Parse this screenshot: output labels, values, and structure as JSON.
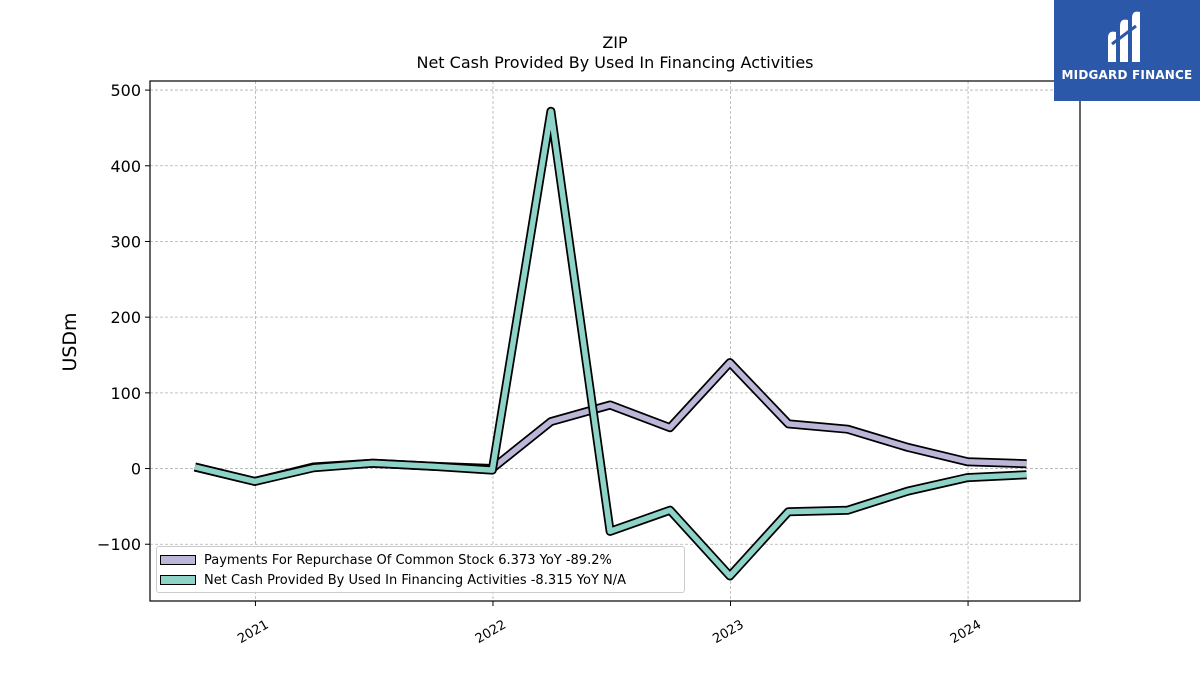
{
  "chart_data": {
    "type": "line",
    "title": "ZIP",
    "subtitle": "Net Cash Provided By Used In Financing Activities",
    "xlabel": "",
    "ylabel": "USDm",
    "ylim": [
      -175,
      512
    ],
    "xlim": [
      "2020-07-23",
      "2024-06-21"
    ],
    "yticks": [
      -100,
      0,
      100,
      200,
      300,
      400,
      500
    ],
    "ytick_labels": [
      "−100",
      "0",
      "100",
      "200",
      "300",
      "400",
      "500"
    ],
    "xticks": [
      "2021-01-01",
      "2022-01-01",
      "2023-01-01",
      "2024-01-01"
    ],
    "xtick_labels": [
      "2021",
      "2022",
      "2023",
      "2024"
    ],
    "grid": true,
    "legend_position": "lower-left",
    "x": [
      "2020-09-30",
      "2020-12-31",
      "2021-03-31",
      "2021-06-30",
      "2021-09-30",
      "2021-12-31",
      "2022-03-31",
      "2022-06-30",
      "2022-09-30",
      "2022-12-31",
      "2023-03-31",
      "2023-06-30",
      "2023-09-30",
      "2023-12-31",
      "2024-03-31"
    ],
    "series": [
      {
        "name": "Payments For Repurchase Of Common Stock",
        "legend_label": "Payments For Repurchase Of Common Stock  6.373 YoY -89.2%",
        "color": "#bcb7d9",
        "values": [
          2,
          -17,
          2,
          7,
          3,
          0,
          62,
          84,
          54,
          140,
          59,
          52,
          28,
          9,
          6.373
        ]
      },
      {
        "name": "Net Cash Provided By Used In Financing Activities",
        "legend_label": "Net Cash Provided By Used In Financing Activities  -8.315 YoY N/A",
        "color": "#8dd3c7",
        "values": [
          2,
          -17,
          1,
          7,
          3,
          -2,
          472,
          -83,
          -55,
          -142,
          -57,
          -55,
          -30,
          -12,
          -8.315
        ]
      }
    ]
  },
  "logo": {
    "text": "MIDGARD FINANCE"
  }
}
